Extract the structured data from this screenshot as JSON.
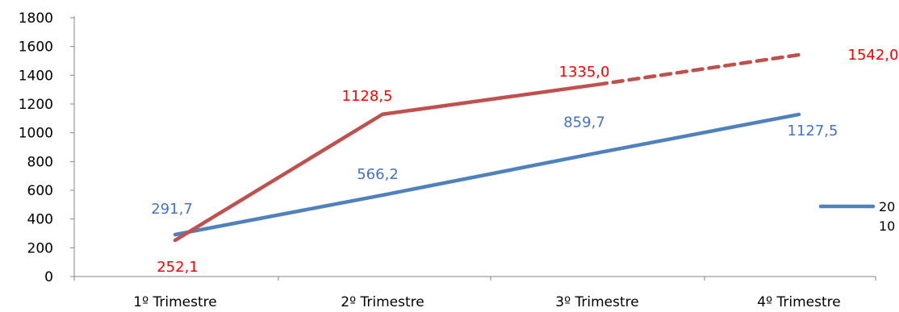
{
  "chart_data": {
    "type": "line",
    "categories": [
      "1º Trimestre",
      "2º Trimestre",
      "3º Trimestre",
      "4º Trimestre"
    ],
    "ylim": [
      0,
      1800
    ],
    "yticks": [
      0,
      200,
      400,
      600,
      800,
      1000,
      1200,
      1400,
      1600,
      1800
    ],
    "grid": false,
    "legend_position": "right",
    "series": [
      {
        "name": "2010",
        "legend_label_lines": [
          "20",
          "10"
        ],
        "color": "#4F81BD",
        "label_color": "#4472C4",
        "values": [
          291.7,
          566.2,
          859.7,
          1127.5
        ],
        "labels": [
          "291,7",
          "566,2",
          "859,7",
          "1127,5"
        ]
      },
      {
        "name": "",
        "color": "#C0504D",
        "label_color": "#FF0000",
        "values": [
          252.1,
          1128.5,
          1335.0,
          1542.0
        ],
        "labels": [
          "252,1",
          "1128,5",
          "1335,0",
          "1542,0"
        ],
        "dashed_last_segment": true
      }
    ]
  }
}
